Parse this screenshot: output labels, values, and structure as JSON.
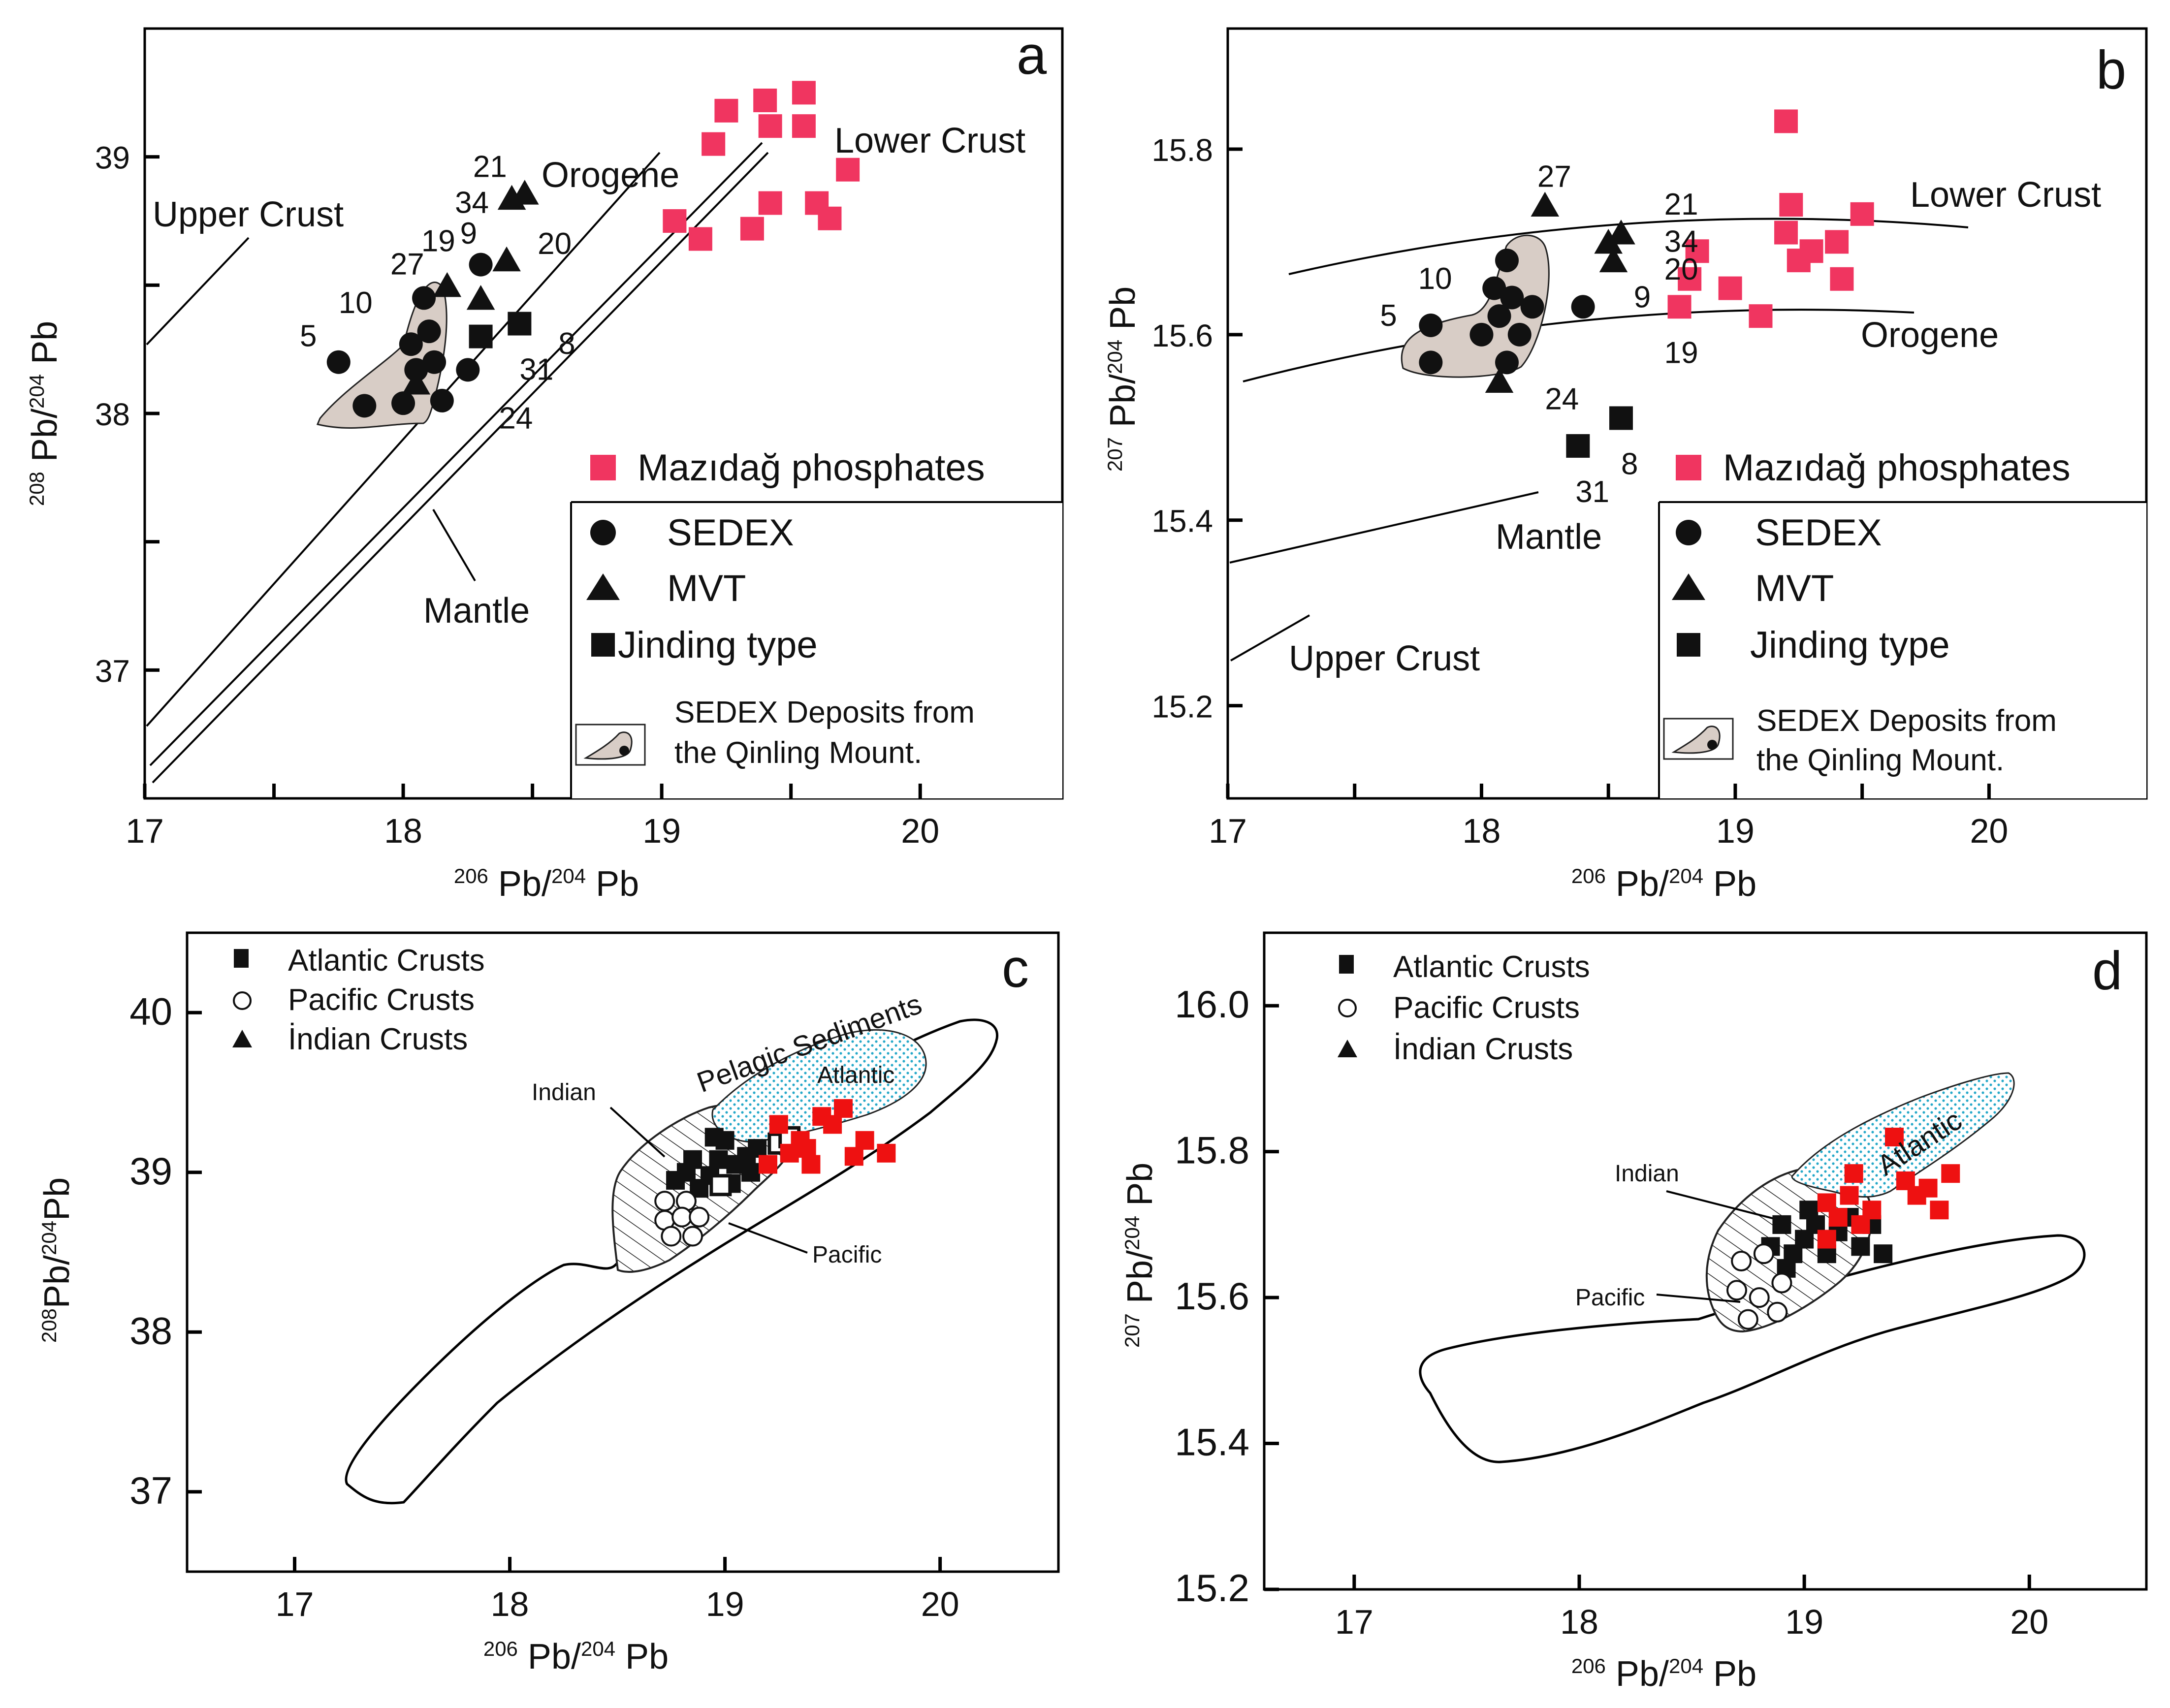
{
  "figure": {
    "colors": {
      "phosphate": "#f03560",
      "black": "#111111",
      "red": "#ee1111",
      "sedex_field": "#d8cdc6",
      "pelagic": "#27a9c9"
    }
  },
  "chart_data": [
    {
      "panel": "a",
      "type": "scatter",
      "xlabel": "206Pb/204Pb",
      "ylabel": "208Pb/204Pb",
      "xlim": [
        17,
        20.55
      ],
      "ylim": [
        36.5,
        39.5
      ],
      "xticks": [
        17,
        18,
        19,
        20
      ],
      "yticks": [
        37,
        38,
        39
      ],
      "curve_labels": [
        "Upper Crust",
        "Orogene",
        "Lower Crust",
        "Mantle"
      ],
      "legend": {
        "entries": [
          "Mazıdağ phosphates",
          "SEDEX",
          "MVT",
          "Jinding type"
        ],
        "field_entry": [
          "SEDEX Deposits from",
          "the Qinling Mount."
        ]
      },
      "series": [
        {
          "name": "Mazıdağ phosphates",
          "marker": "square",
          "points": [
            [
              19.05,
              38.75
            ],
            [
              19.15,
              38.68
            ],
            [
              19.35,
              38.72
            ],
            [
              19.2,
              39.05
            ],
            [
              19.25,
              39.18
            ],
            [
              19.4,
              39.22
            ],
            [
              19.55,
              39.25
            ],
            [
              19.42,
              39.12
            ],
            [
              19.55,
              39.12
            ],
            [
              19.42,
              38.82
            ],
            [
              19.6,
              38.82
            ],
            [
              19.65,
              38.76
            ],
            [
              19.72,
              38.95
            ]
          ]
        },
        {
          "name": "SEDEX",
          "marker": "circle",
          "points": [
            [
              17.75,
              38.2
            ],
            [
              17.85,
              38.03
            ],
            [
              18.0,
              38.04
            ],
            [
              18.03,
              38.27
            ],
            [
              18.05,
              38.17
            ],
            [
              18.08,
              38.45
            ],
            [
              18.1,
              38.32
            ],
            [
              18.12,
              38.2
            ],
            [
              18.15,
              38.05
            ],
            [
              18.25,
              38.17
            ],
            [
              18.3,
              38.58
            ]
          ]
        },
        {
          "name": "MVT",
          "marker": "triangle",
          "points": [
            [
              18.05,
              38.12
            ],
            [
              18.17,
              38.5
            ],
            [
              18.3,
              38.45
            ],
            [
              18.4,
              38.6
            ],
            [
              18.42,
              38.84
            ],
            [
              18.47,
              38.86
            ]
          ]
        },
        {
          "name": "Jinding type",
          "marker": "square",
          "points": [
            [
              18.3,
              38.3
            ],
            [
              18.45,
              38.35
            ]
          ]
        }
      ],
      "sample_labels": [
        {
          "text": "21",
          "x": 18.27,
          "y": 38.96
        },
        {
          "text": "34",
          "x": 18.2,
          "y": 38.82
        },
        {
          "text": "9",
          "x": 18.22,
          "y": 38.7
        },
        {
          "text": "20",
          "x": 18.52,
          "y": 38.66
        },
        {
          "text": "19",
          "x": 18.07,
          "y": 38.67
        },
        {
          "text": "27",
          "x": 17.95,
          "y": 38.58
        },
        {
          "text": "10",
          "x": 17.75,
          "y": 38.43
        },
        {
          "text": "5",
          "x": 17.6,
          "y": 38.3
        },
        {
          "text": "8",
          "x": 18.6,
          "y": 38.27
        },
        {
          "text": "31",
          "x": 18.45,
          "y": 38.17
        },
        {
          "text": "24",
          "x": 18.37,
          "y": 37.98
        }
      ]
    },
    {
      "panel": "b",
      "type": "scatter",
      "xlabel": "206Pb/204Pb",
      "ylabel": "207Pb/204Pb",
      "xlim": [
        17,
        20.62
      ],
      "ylim": [
        15.1,
        15.93
      ],
      "xticks": [
        17,
        18,
        19,
        20
      ],
      "yticks": [
        15.2,
        15.4,
        15.6,
        15.8
      ],
      "curve_labels": [
        "Lower Crust",
        "Orogene",
        "Mantle",
        "Upper Crust"
      ],
      "legend": {
        "entries": [
          "Mazıdağ phosphates",
          "SEDEX",
          "MVT",
          "Jinding type"
        ],
        "field_entry": [
          "SEDEX Deposits from",
          "the Qinling Mount."
        ]
      },
      "series": [
        {
          "name": "Mazıdağ phosphates",
          "marker": "square",
          "points": [
            [
              19.2,
              15.83
            ],
            [
              19.22,
              15.74
            ],
            [
              19.2,
              15.71
            ],
            [
              19.25,
              15.68
            ],
            [
              19.3,
              15.69
            ],
            [
              19.4,
              15.7
            ],
            [
              19.5,
              15.73
            ],
            [
              19.42,
              15.66
            ],
            [
              18.85,
              15.69
            ],
            [
              18.82,
              15.66
            ],
            [
              18.98,
              15.65
            ],
            [
              18.78,
              15.63
            ],
            [
              19.1,
              15.62
            ]
          ]
        },
        {
          "name": "SEDEX",
          "marker": "circle",
          "points": [
            [
              17.8,
              15.61
            ],
            [
              17.8,
              15.57
            ],
            [
              18.0,
              15.6
            ],
            [
              18.05,
              15.65
            ],
            [
              18.07,
              15.62
            ],
            [
              18.1,
              15.68
            ],
            [
              18.12,
              15.64
            ],
            [
              18.15,
              15.6
            ],
            [
              18.1,
              15.57
            ],
            [
              18.2,
              15.63
            ],
            [
              18.4,
              15.63
            ]
          ]
        },
        {
          "name": "MVT",
          "marker": "triangle",
          "points": [
            [
              18.25,
              15.74
            ],
            [
              18.5,
              15.7
            ],
            [
              18.55,
              15.71
            ],
            [
              18.52,
              15.68
            ],
            [
              18.07,
              15.55
            ]
          ]
        },
        {
          "name": "Jinding type",
          "marker": "square",
          "points": [
            [
              18.38,
              15.48
            ],
            [
              18.55,
              15.51
            ]
          ]
        }
      ],
      "sample_labels": [
        {
          "text": "27",
          "x": 18.22,
          "y": 15.77
        },
        {
          "text": "21",
          "x": 18.72,
          "y": 15.74
        },
        {
          "text": "34",
          "x": 18.72,
          "y": 15.7
        },
        {
          "text": "20",
          "x": 18.72,
          "y": 15.67
        },
        {
          "text": "9",
          "x": 18.6,
          "y": 15.64
        },
        {
          "text": "10",
          "x": 17.75,
          "y": 15.66
        },
        {
          "text": "5",
          "x": 17.6,
          "y": 15.62
        },
        {
          "text": "19",
          "x": 18.72,
          "y": 15.58
        },
        {
          "text": "24",
          "x": 18.25,
          "y": 15.53
        },
        {
          "text": "8",
          "x": 18.55,
          "y": 15.46
        },
        {
          "text": "31",
          "x": 18.37,
          "y": 15.43
        }
      ]
    },
    {
      "panel": "c",
      "type": "scatter",
      "xlabel": "206Pb/204Pb",
      "ylabel": "208Pb/204Pb",
      "xlim": [
        16.5,
        20.55
      ],
      "ylim": [
        36.5,
        40.5
      ],
      "xticks": [
        17,
        18,
        19,
        20
      ],
      "yticks": [
        37,
        38,
        39,
        40
      ],
      "field_labels": [
        "Pelagic Sediments",
        "Atlantic",
        "Indian",
        "Pacific"
      ],
      "legend": {
        "entries": [
          "Atlantic Crusts",
          "Pacific Crusts",
          "İndian Crusts"
        ]
      },
      "series": [
        {
          "name": "Atlantic Crusts",
          "marker": "square",
          "points": [
            [
              18.77,
              38.95
            ],
            [
              18.82,
              39.0
            ],
            [
              18.88,
              38.9
            ],
            [
              18.93,
              38.98
            ],
            [
              18.97,
              39.08
            ],
            [
              19.0,
              39.2
            ],
            [
              19.05,
              39.05
            ],
            [
              19.1,
              39.1
            ],
            [
              19.03,
              38.93
            ],
            [
              18.95,
              39.22
            ],
            [
              19.12,
              39.0
            ],
            [
              19.15,
              39.15
            ],
            [
              18.85,
              39.08
            ]
          ]
        },
        {
          "name": "Atlantic Crusts (open)",
          "marker": "open-square",
          "points": [
            [
              18.98,
              38.92
            ],
            [
              19.25,
              39.18
            ],
            [
              19.3,
              39.22
            ]
          ]
        },
        {
          "name": "Pacific Crusts",
          "marker": "open-circle",
          "points": [
            [
              18.72,
              38.82
            ],
            [
              18.82,
              38.82
            ],
            [
              18.72,
              38.7
            ],
            [
              18.8,
              38.72
            ],
            [
              18.88,
              38.72
            ],
            [
              18.75,
              38.6
            ],
            [
              18.85,
              38.6
            ]
          ]
        },
        {
          "name": "Mazıdağ phosphates",
          "marker": "red-square",
          "points": [
            [
              19.3,
              39.12
            ],
            [
              19.35,
              39.2
            ],
            [
              19.45,
              39.35
            ],
            [
              19.5,
              39.3
            ],
            [
              19.55,
              39.4
            ],
            [
              19.65,
              39.2
            ],
            [
              19.4,
              39.05
            ],
            [
              19.6,
              39.1
            ],
            [
              19.75,
              39.12
            ],
            [
              19.2,
              39.05
            ],
            [
              19.25,
              39.3
            ],
            [
              19.38,
              39.15
            ]
          ]
        }
      ]
    },
    {
      "panel": "d",
      "type": "scatter",
      "xlabel": "206Pb/204Pb",
      "ylabel": "207Pb/204Pb",
      "xlim": [
        16.6,
        20.52
      ],
      "ylim": [
        15.2,
        16.1
      ],
      "xticks": [
        17,
        18,
        19,
        20
      ],
      "yticks": [
        15.2,
        15.4,
        15.6,
        15.8,
        16.0
      ],
      "field_labels": [
        "Atlantic",
        "Indian",
        "Pacific"
      ],
      "legend": {
        "entries": [
          "Atlantic Crusts",
          "Pacific Crusts",
          "İndian Crusts"
        ]
      },
      "series": [
        {
          "name": "Atlantic Crusts",
          "marker": "square",
          "points": [
            [
              18.85,
              15.67
            ],
            [
              18.9,
              15.7
            ],
            [
              18.95,
              15.66
            ],
            [
              19.0,
              15.68
            ],
            [
              19.05,
              15.7
            ],
            [
              19.1,
              15.66
            ],
            [
              19.15,
              15.69
            ],
            [
              19.2,
              15.71
            ],
            [
              19.25,
              15.67
            ],
            [
              19.3,
              15.7
            ],
            [
              18.92,
              15.64
            ],
            [
              19.35,
              15.66
            ],
            [
              19.02,
              15.72
            ]
          ]
        },
        {
          "name": "Pacific Crusts",
          "marker": "open-circle",
          "points": [
            [
              18.72,
              15.65
            ],
            [
              18.82,
              15.66
            ],
            [
              18.7,
              15.61
            ],
            [
              18.8,
              15.6
            ],
            [
              18.9,
              15.62
            ],
            [
              18.75,
              15.57
            ],
            [
              18.88,
              15.58
            ]
          ]
        },
        {
          "name": "Mazıdağ phosphates",
          "marker": "red-square",
          "points": [
            [
              19.1,
              15.73
            ],
            [
              19.15,
              15.71
            ],
            [
              19.2,
              15.74
            ],
            [
              19.25,
              15.7
            ],
            [
              19.3,
              15.72
            ],
            [
              19.4,
              15.82
            ],
            [
              19.45,
              15.76
            ],
            [
              19.5,
              15.74
            ],
            [
              19.55,
              15.75
            ],
            [
              19.6,
              15.72
            ],
            [
              19.65,
              15.77
            ],
            [
              19.1,
              15.68
            ],
            [
              19.22,
              15.77
            ]
          ]
        }
      ]
    }
  ]
}
